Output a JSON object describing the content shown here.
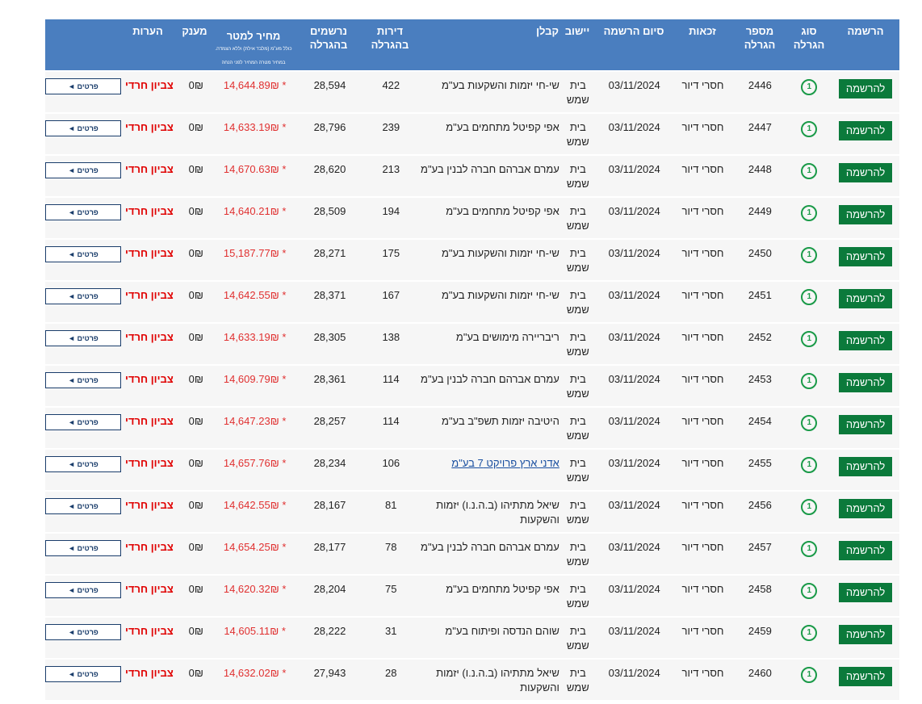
{
  "headers": {
    "register": "הרשמה",
    "type": "סוג הגרלה",
    "number": "מספר הגרלה",
    "eligibility": "זכאות",
    "end": "סיום הרשמה",
    "city": "יישוב",
    "contractor": "קבלן",
    "apartments": "דירות בהגרלה",
    "registered": "נרשמים בהגרלה",
    "price": "מחיר למטר",
    "price_note": "כולל מע\"מ (מלבד אילת) וללא הצמדה. במחיר מטרה המחיר לפני הנחה",
    "grant": "מענק",
    "notes": "הערות"
  },
  "labels": {
    "register_button": "להרשמה",
    "details_button": "פרטים ◄"
  },
  "rows": [
    {
      "number": "2446",
      "elig": "חסרי דיור",
      "end": "03/11/2024",
      "city": "בית שמש",
      "contractor": "שי-חי יזמות והשקעות בע\"מ",
      "apts": "422",
      "reg": "28,594",
      "price": "* 14,644.89₪",
      "grant": "0₪",
      "notes": "צביון חרדי"
    },
    {
      "number": "2447",
      "elig": "חסרי דיור",
      "end": "03/11/2024",
      "city": "בית שמש",
      "contractor": "אפי קפיטל מתחמים בע\"מ",
      "apts": "239",
      "reg": "28,796",
      "price": "* 14,633.19₪",
      "grant": "0₪",
      "notes": "צביון חרדי"
    },
    {
      "number": "2448",
      "elig": "חסרי דיור",
      "end": "03/11/2024",
      "city": "בית שמש",
      "contractor": "עמרם אברהם חברה לבנין בע\"מ",
      "apts": "213",
      "reg": "28,620",
      "price": "* 14,670.63₪",
      "grant": "0₪",
      "notes": "צביון חרדי"
    },
    {
      "number": "2449",
      "elig": "חסרי דיור",
      "end": "03/11/2024",
      "city": "בית שמש",
      "contractor": "אפי קפיטל מתחמים בע\"מ",
      "apts": "194",
      "reg": "28,509",
      "price": "* 14,640.21₪",
      "grant": "0₪",
      "notes": "צביון חרדי"
    },
    {
      "number": "2450",
      "elig": "חסרי דיור",
      "end": "03/11/2024",
      "city": "בית שמש",
      "contractor": "שי-חי יזמות והשקעות בע\"מ",
      "apts": "175",
      "reg": "28,271",
      "price": "* 15,187.77₪",
      "grant": "0₪",
      "notes": "צביון חרדי"
    },
    {
      "number": "2451",
      "elig": "חסרי דיור",
      "end": "03/11/2024",
      "city": "בית שמש",
      "contractor": "שי-חי יזמות והשקעות בע\"מ",
      "apts": "167",
      "reg": "28,371",
      "price": "* 14,642.55₪",
      "grant": "0₪",
      "notes": "צביון חרדי"
    },
    {
      "number": "2452",
      "elig": "חסרי דיור",
      "end": "03/11/2024",
      "city": "בית שמש",
      "contractor": "ריבריירה מימושים בע\"מ",
      "apts": "138",
      "reg": "28,305",
      "price": "* 14,633.19₪",
      "grant": "0₪",
      "notes": "צביון חרדי"
    },
    {
      "number": "2453",
      "elig": "חסרי דיור",
      "end": "03/11/2024",
      "city": "בית שמש",
      "contractor": "עמרם אברהם חברה לבנין בע\"מ",
      "apts": "114",
      "reg": "28,361",
      "price": "* 14,609.79₪",
      "grant": "0₪",
      "notes": "צביון חרדי"
    },
    {
      "number": "2454",
      "elig": "חסרי דיור",
      "end": "03/11/2024",
      "city": "בית שמש",
      "contractor": "היטיבה יזמות תשפ\"ב בע\"מ",
      "apts": "114",
      "reg": "28,257",
      "price": "* 14,647.23₪",
      "grant": "0₪",
      "notes": "צביון חרדי"
    },
    {
      "number": "2455",
      "elig": "חסרי דיור",
      "end": "03/11/2024",
      "city": "בית שמש",
      "contractor": "אדני ארץ פרויקט 7 בע\"מ",
      "apts": "106",
      "reg": "28,234",
      "price": "* 14,657.76₪",
      "grant": "0₪",
      "notes": "צביון חרדי",
      "link": true
    },
    {
      "number": "2456",
      "elig": "חסרי דיור",
      "end": "03/11/2024",
      "city": "בית שמש",
      "contractor": "שיאל מתתיהו (ב.ה.נ.ו) יזמות והשקעות",
      "apts": "81",
      "reg": "28,167",
      "price": "* 14,642.55₪",
      "grant": "0₪",
      "notes": "צביון חרדי"
    },
    {
      "number": "2457",
      "elig": "חסרי דיור",
      "end": "03/11/2024",
      "city": "בית שמש",
      "contractor": "עמרם אברהם חברה לבנין בע\"מ",
      "apts": "78",
      "reg": "28,177",
      "price": "* 14,654.25₪",
      "grant": "0₪",
      "notes": "צביון חרדי"
    },
    {
      "number": "2458",
      "elig": "חסרי דיור",
      "end": "03/11/2024",
      "city": "בית שמש",
      "contractor": "אפי קפיטל מתחמים בע\"מ",
      "apts": "75",
      "reg": "28,204",
      "price": "* 14,620.32₪",
      "grant": "0₪",
      "notes": "צביון חרדי"
    },
    {
      "number": "2459",
      "elig": "חסרי דיור",
      "end": "03/11/2024",
      "city": "בית שמש",
      "contractor": "שוהם הנדסה ופיתוח בע\"מ",
      "apts": "31",
      "reg": "28,222",
      "price": "* 14,605.11₪",
      "grant": "0₪",
      "notes": "צביון חרדי"
    },
    {
      "number": "2460",
      "elig": "חסרי דיור",
      "end": "03/11/2024",
      "city": "בית שמש",
      "contractor": "שיאל מתתיהו (ב.ה.נ.ו) יזמות והשקעות",
      "apts": "28",
      "reg": "27,943",
      "price": "* 14,632.02₪",
      "grant": "0₪",
      "notes": "צביון חרדי"
    }
  ]
}
